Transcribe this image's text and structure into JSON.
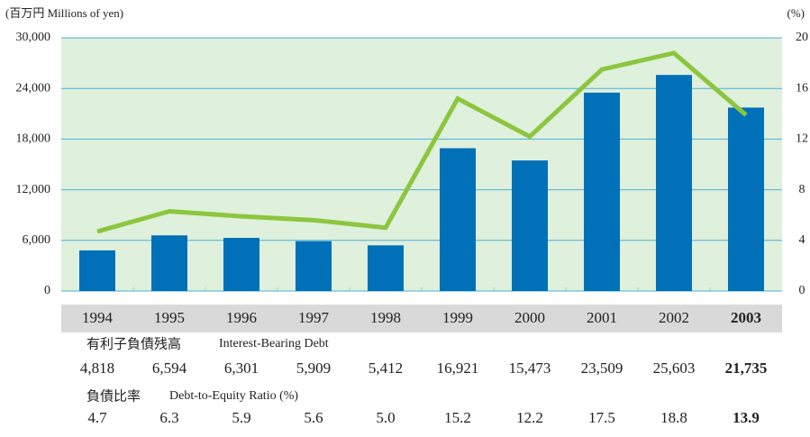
{
  "chart_data": {
    "type": "bar",
    "y_label": "(百万円 Millions of yen)",
    "y2_label": "(%)",
    "categories": [
      "1994",
      "1995",
      "1996",
      "1997",
      "1998",
      "1999",
      "2000",
      "2001",
      "2002",
      "2003"
    ],
    "highlight": "2003",
    "highlight_color": "#1a6fb5",
    "series": [
      {
        "name": "Interest-Bearing Debt",
        "name_ja": "有利子負債残高",
        "type": "bar",
        "color": "#0070b8",
        "values": [
          4818,
          6594,
          6301,
          5909,
          5412,
          16921,
          15473,
          23509,
          25603,
          21735
        ],
        "value_labels": [
          "4,818",
          "6,594",
          "6,301",
          "5,909",
          "5,412",
          "16,921",
          "15,473",
          "23,509",
          "25,603",
          "21,735"
        ]
      },
      {
        "name": "Debt-to-Equity Ratio (%)",
        "name_ja": "負債比率",
        "type": "line",
        "axis": "y2",
        "color": "#8cc63f",
        "values": [
          4.7,
          6.3,
          5.9,
          5.6,
          5.0,
          15.2,
          12.2,
          17.5,
          18.8,
          13.9
        ],
        "value_labels": [
          "4.7",
          "6.3",
          "5.9",
          "5.6",
          "5.0",
          "15.2",
          "12.2",
          "17.5",
          "18.8",
          "13.9"
        ]
      }
    ],
    "ylim": [
      0,
      30000
    ],
    "yticks": [
      0,
      {
        "value": 6000,
        "label": "6,000"
      },
      {
        "value": 12000,
        "label": "12,000"
      },
      {
        "value": 18000,
        "label": "18,000"
      },
      {
        "value": 24000,
        "label": "24,000"
      },
      {
        "value": 30000,
        "label": "30,000"
      }
    ],
    "y2lim": [
      0,
      20
    ],
    "y2ticks": [
      0,
      4,
      8,
      12,
      16,
      20
    ],
    "grid": true
  }
}
